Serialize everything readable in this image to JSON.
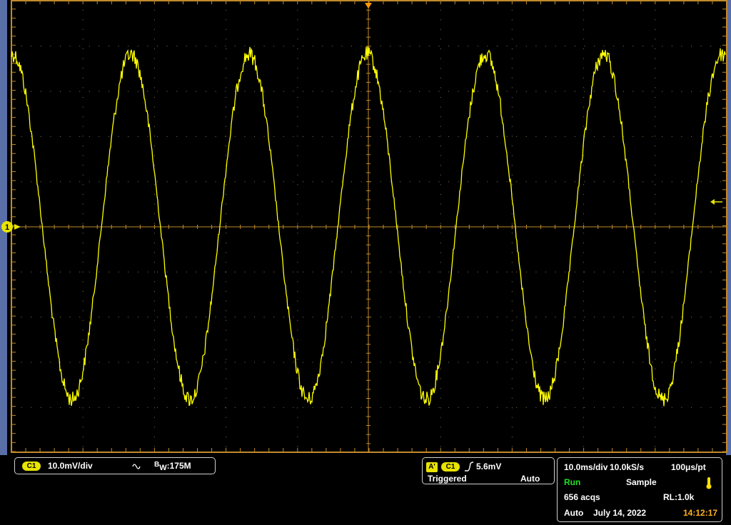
{
  "channel": {
    "badge": "C1",
    "scale": "10.0mV/div",
    "bandwidth_prefix": "B",
    "bandwidth_sub": "W",
    "bandwidth_value": ":175M",
    "marker": "1",
    "coupling_icon": "ac-coupling-icon"
  },
  "trigger": {
    "source_badge": "A'",
    "channel_badge": "C1",
    "level": "5.6mV",
    "state": "Triggered",
    "mode": "Auto",
    "slope_icon": "rising-edge-icon"
  },
  "acquisition": {
    "timebase": "10.0ms/div",
    "sample_rate": "10.0kS/s",
    "per_point": "100μs/pt",
    "run_state": "Run",
    "acq_mode": "Sample",
    "acqs": "656 acqs",
    "record_length": "RL:1.0k",
    "auto": "Auto",
    "date": "July 14, 2022",
    "time": "14:12:17"
  },
  "colors": {
    "trace": "#ffff00",
    "graticule": "#c08a2a",
    "panel_border": "#cfcfcf",
    "run": "#20e020",
    "time": "#ffb020",
    "frame": "#5a6ea8"
  },
  "chart_data": {
    "type": "line",
    "series": [
      {
        "values": "sine waveform, 6 cycles visible, amplitude approx ±3.9 div (≈ ±39mV)"
      }
    ],
    "xlabel": "",
    "ylabel": "",
    "grid": true
  }
}
